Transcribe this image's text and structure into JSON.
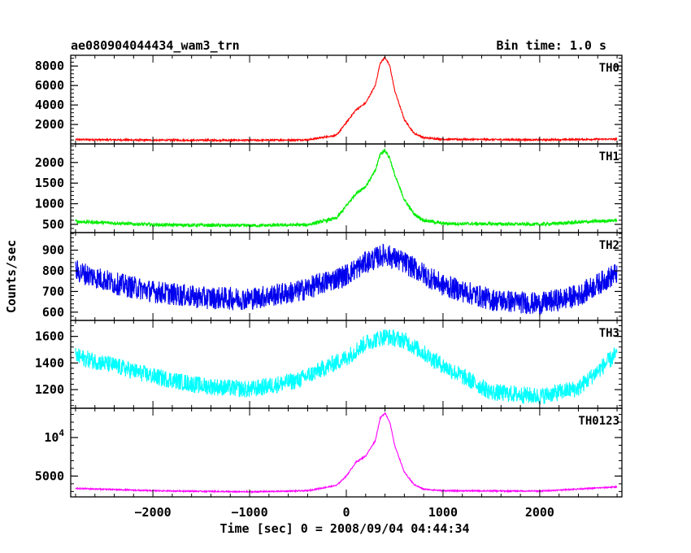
{
  "header": {
    "title": "ae080904044434_wam3_trn",
    "bin_time": "Bin time: 1.0 s"
  },
  "chart_data": {
    "type": "line",
    "title": "ae080904044434_wam3_trn",
    "xlabel": "Time [sec] 0 = 2008/09/04 04:44:34",
    "ylabel": "Counts/sec",
    "xlim": [
      -2850,
      2850
    ],
    "x_ticks": [
      -2000,
      -1000,
      0,
      1000,
      2000
    ],
    "x_tick_labels": [
      "−2000",
      "−1000",
      "0",
      "1000",
      "2000"
    ],
    "grid": false,
    "panels": [
      {
        "label": "TH0",
        "color": "#ff0000",
        "ylim": [
          0,
          9100
        ],
        "y_ticks": [
          2000,
          4000,
          6000,
          8000
        ],
        "y_tick_labels": [
          "2000",
          "4000",
          "6000",
          "8000"
        ],
        "noise": 80,
        "x": [
          -2800,
          -2000,
          -1000,
          -400,
          -100,
          0,
          100,
          200,
          300,
          350,
          400,
          450,
          500,
          600,
          700,
          800,
          1000,
          2000,
          2800
        ],
        "values": [
          450,
          390,
          380,
          420,
          900,
          2200,
          3500,
          4200,
          6000,
          8300,
          8900,
          8000,
          5500,
          2500,
          1100,
          650,
          480,
          420,
          500
        ]
      },
      {
        "label": "TH1",
        "color": "#00ee00",
        "ylim": [
          300,
          2450
        ],
        "y_ticks": [
          500,
          1000,
          1500,
          2000
        ],
        "y_tick_labels": [
          "500",
          "1000",
          "1500",
          "2000"
        ],
        "noise": 40,
        "x": [
          -2800,
          -2000,
          -1000,
          -400,
          -100,
          0,
          100,
          200,
          300,
          350,
          400,
          450,
          500,
          600,
          700,
          800,
          1000,
          2000,
          2800
        ],
        "values": [
          570,
          490,
          470,
          490,
          650,
          950,
          1250,
          1420,
          1800,
          2200,
          2300,
          2100,
          1700,
          1100,
          750,
          600,
          520,
          500,
          600
        ]
      },
      {
        "label": "TH2",
        "color": "#0000ee",
        "ylim": [
          560,
          985
        ],
        "y_ticks": [
          600,
          700,
          800,
          900
        ],
        "y_tick_labels": [
          "600",
          "700",
          "800",
          "900"
        ],
        "noise": 55,
        "x": [
          -2800,
          -2400,
          -2000,
          -1500,
          -1000,
          -500,
          0,
          200,
          400,
          600,
          1000,
          1500,
          2000,
          2400,
          2800
        ],
        "values": [
          800,
          740,
          700,
          670,
          665,
          700,
          780,
          840,
          880,
          840,
          730,
          660,
          640,
          680,
          790
        ]
      },
      {
        "label": "TH3",
        "color": "#00ffff",
        "ylim": [
          1060,
          1720
        ],
        "y_ticks": [
          1200,
          1400,
          1600
        ],
        "y_tick_labels": [
          "1200",
          "1400",
          "1600"
        ],
        "noise": 65,
        "x": [
          -2800,
          -2400,
          -2000,
          -1500,
          -1000,
          -500,
          0,
          200,
          400,
          600,
          1000,
          1500,
          2000,
          2400,
          2800
        ],
        "values": [
          1450,
          1380,
          1300,
          1230,
          1200,
          1270,
          1440,
          1550,
          1600,
          1570,
          1380,
          1180,
          1150,
          1210,
          1470
        ]
      },
      {
        "label": "TH0123",
        "color": "#ff00ff",
        "ylim": [
          2300,
          13800
        ],
        "y_ticks": [
          5000,
          10000
        ],
        "y_tick_labels": [
          "5000",
          "10^4"
        ],
        "noise": 80,
        "x": [
          -2800,
          -2000,
          -1000,
          -400,
          -100,
          0,
          100,
          200,
          300,
          350,
          400,
          450,
          500,
          600,
          700,
          800,
          1000,
          2000,
          2800
        ],
        "values": [
          3400,
          3100,
          2950,
          3100,
          3800,
          5000,
          6800,
          7600,
          9600,
          12500,
          13200,
          12000,
          9000,
          5500,
          3900,
          3300,
          3100,
          3050,
          3600
        ]
      }
    ]
  }
}
